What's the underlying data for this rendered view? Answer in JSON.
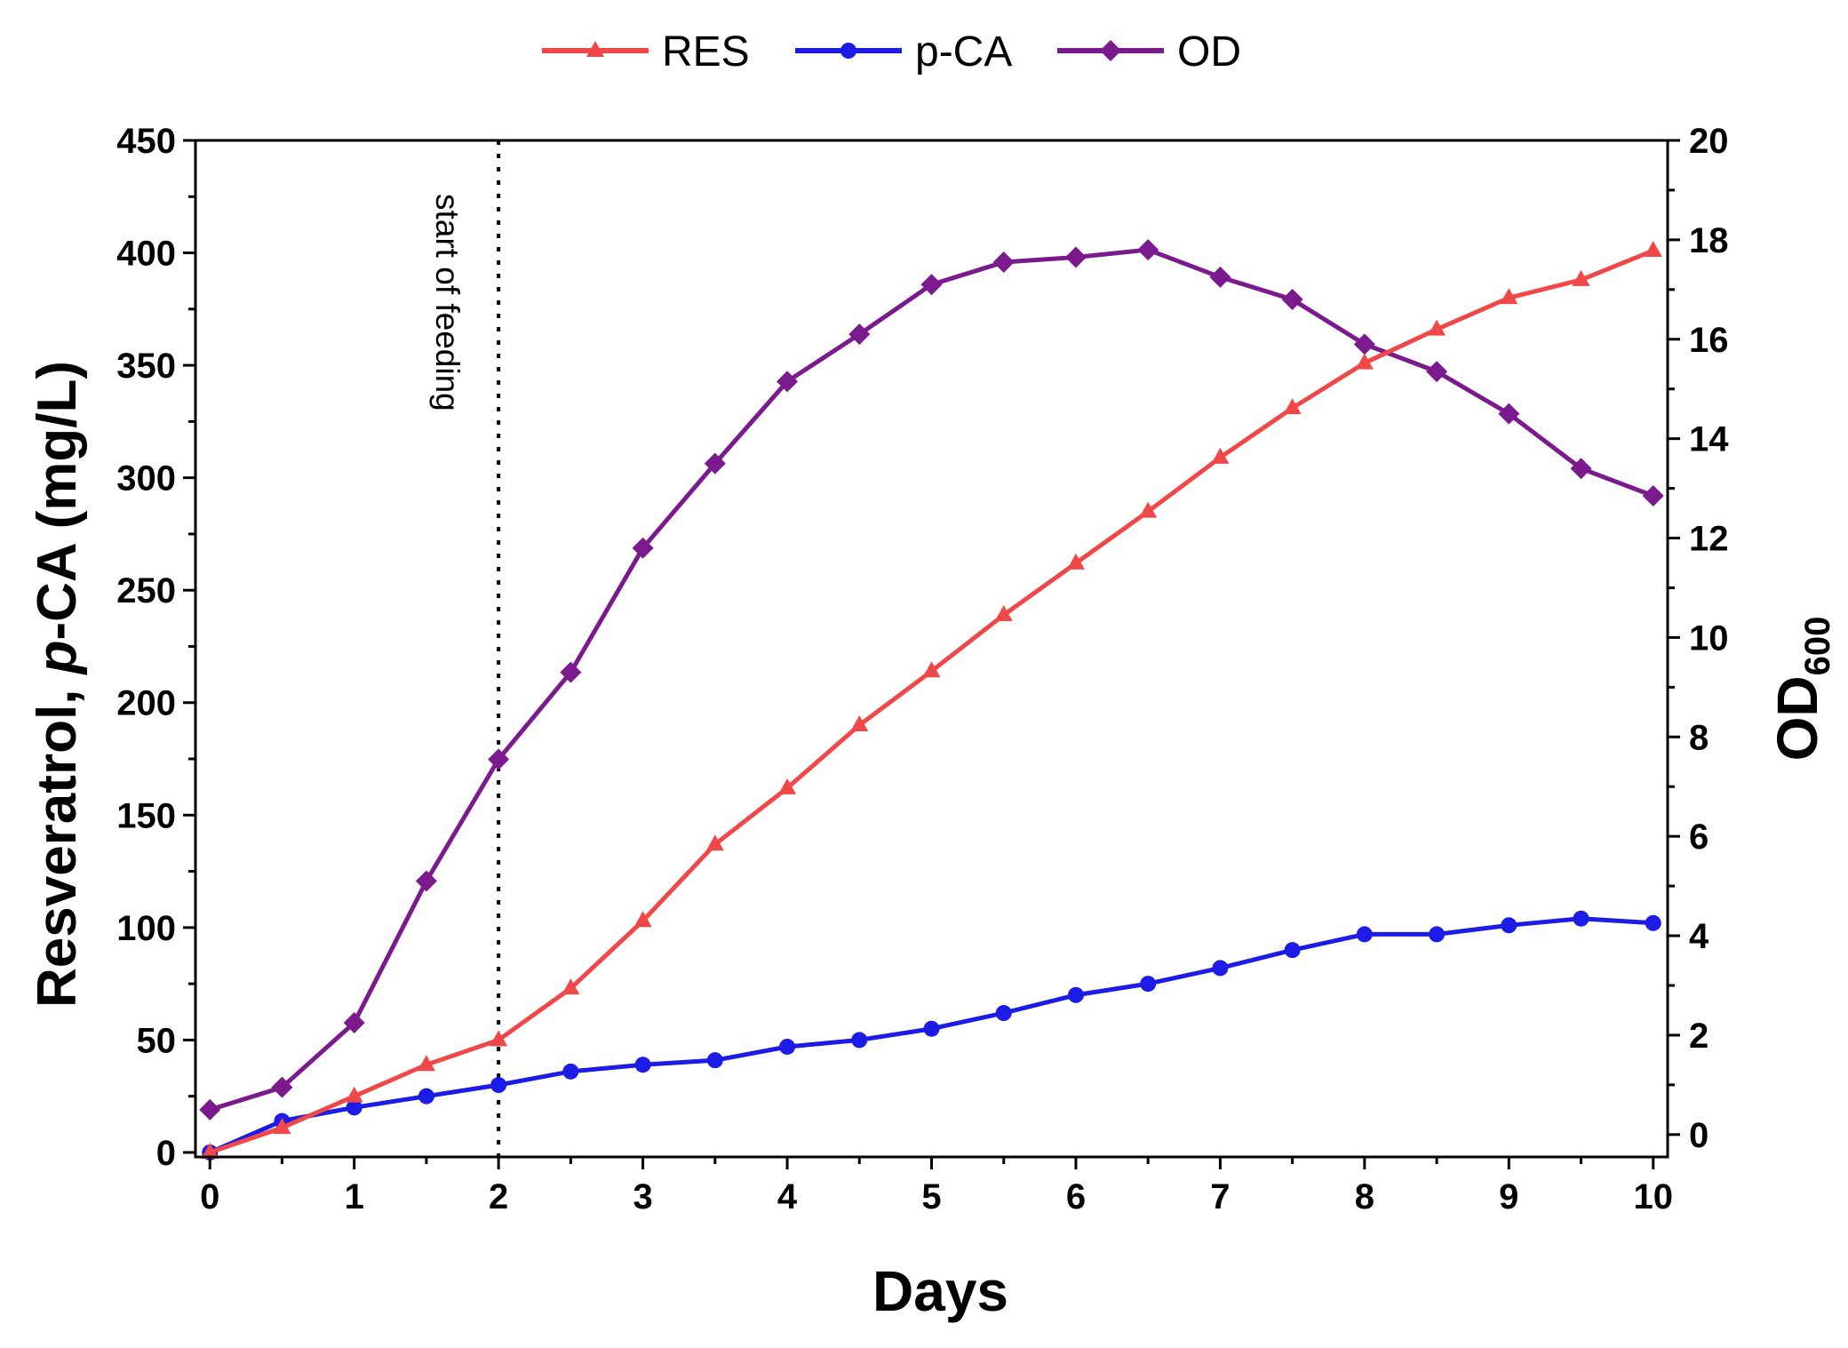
{
  "chart_data": {
    "type": "line",
    "x": [
      0,
      0.5,
      1,
      1.5,
      2,
      2.5,
      3,
      3.5,
      4,
      4.5,
      5,
      5.5,
      6,
      6.5,
      7,
      7.5,
      8,
      8.5,
      9,
      9.5,
      10
    ],
    "series": [
      {
        "name": "RES",
        "axis": "left",
        "color": "#f04848",
        "marker": "triangle",
        "values": [
          0,
          11,
          25,
          39,
          50,
          73,
          103,
          137,
          162,
          190,
          214,
          239,
          262,
          285,
          309,
          331,
          351,
          366,
          380,
          388,
          401
        ]
      },
      {
        "name": "p-CA",
        "axis": "left",
        "color": "#1c1ce6",
        "marker": "circle",
        "values": [
          0,
          14,
          20,
          25,
          30,
          36,
          39,
          41,
          47,
          50,
          55,
          62,
          70,
          75,
          82,
          90,
          97,
          97,
          101,
          104,
          102
        ]
      },
      {
        "name": "OD",
        "axis": "right",
        "color": "#7a1a8c",
        "marker": "diamond",
        "values": [
          0.5,
          0.95,
          2.25,
          5.1,
          7.55,
          9.3,
          11.8,
          13.5,
          15.15,
          16.1,
          17.1,
          17.55,
          17.65,
          17.8,
          17.25,
          16.8,
          15.9,
          15.35,
          14.5,
          13.4,
          12.85
        ]
      }
    ],
    "xlabel": "Days",
    "ylabel_parts": [
      "Resveratrol, ",
      "p",
      "-CA (mg/L)"
    ],
    "y2label_main": "OD",
    "y2label_sub": "600",
    "xlim": [
      -0.1,
      10.1
    ],
    "ylim": [
      -2,
      450
    ],
    "y2lim": [
      -0.45,
      20
    ],
    "x_ticks": [
      0,
      1,
      2,
      3,
      4,
      5,
      6,
      7,
      8,
      9,
      10
    ],
    "y_ticks": [
      0,
      50,
      100,
      150,
      200,
      250,
      300,
      350,
      400,
      450
    ],
    "y2_ticks": [
      0,
      2,
      4,
      6,
      8,
      10,
      12,
      14,
      16,
      18,
      20
    ],
    "vline": {
      "x": 2,
      "label": "start of feeding",
      "style": "dotted"
    },
    "legend_position": "top-center",
    "grid": false
  }
}
